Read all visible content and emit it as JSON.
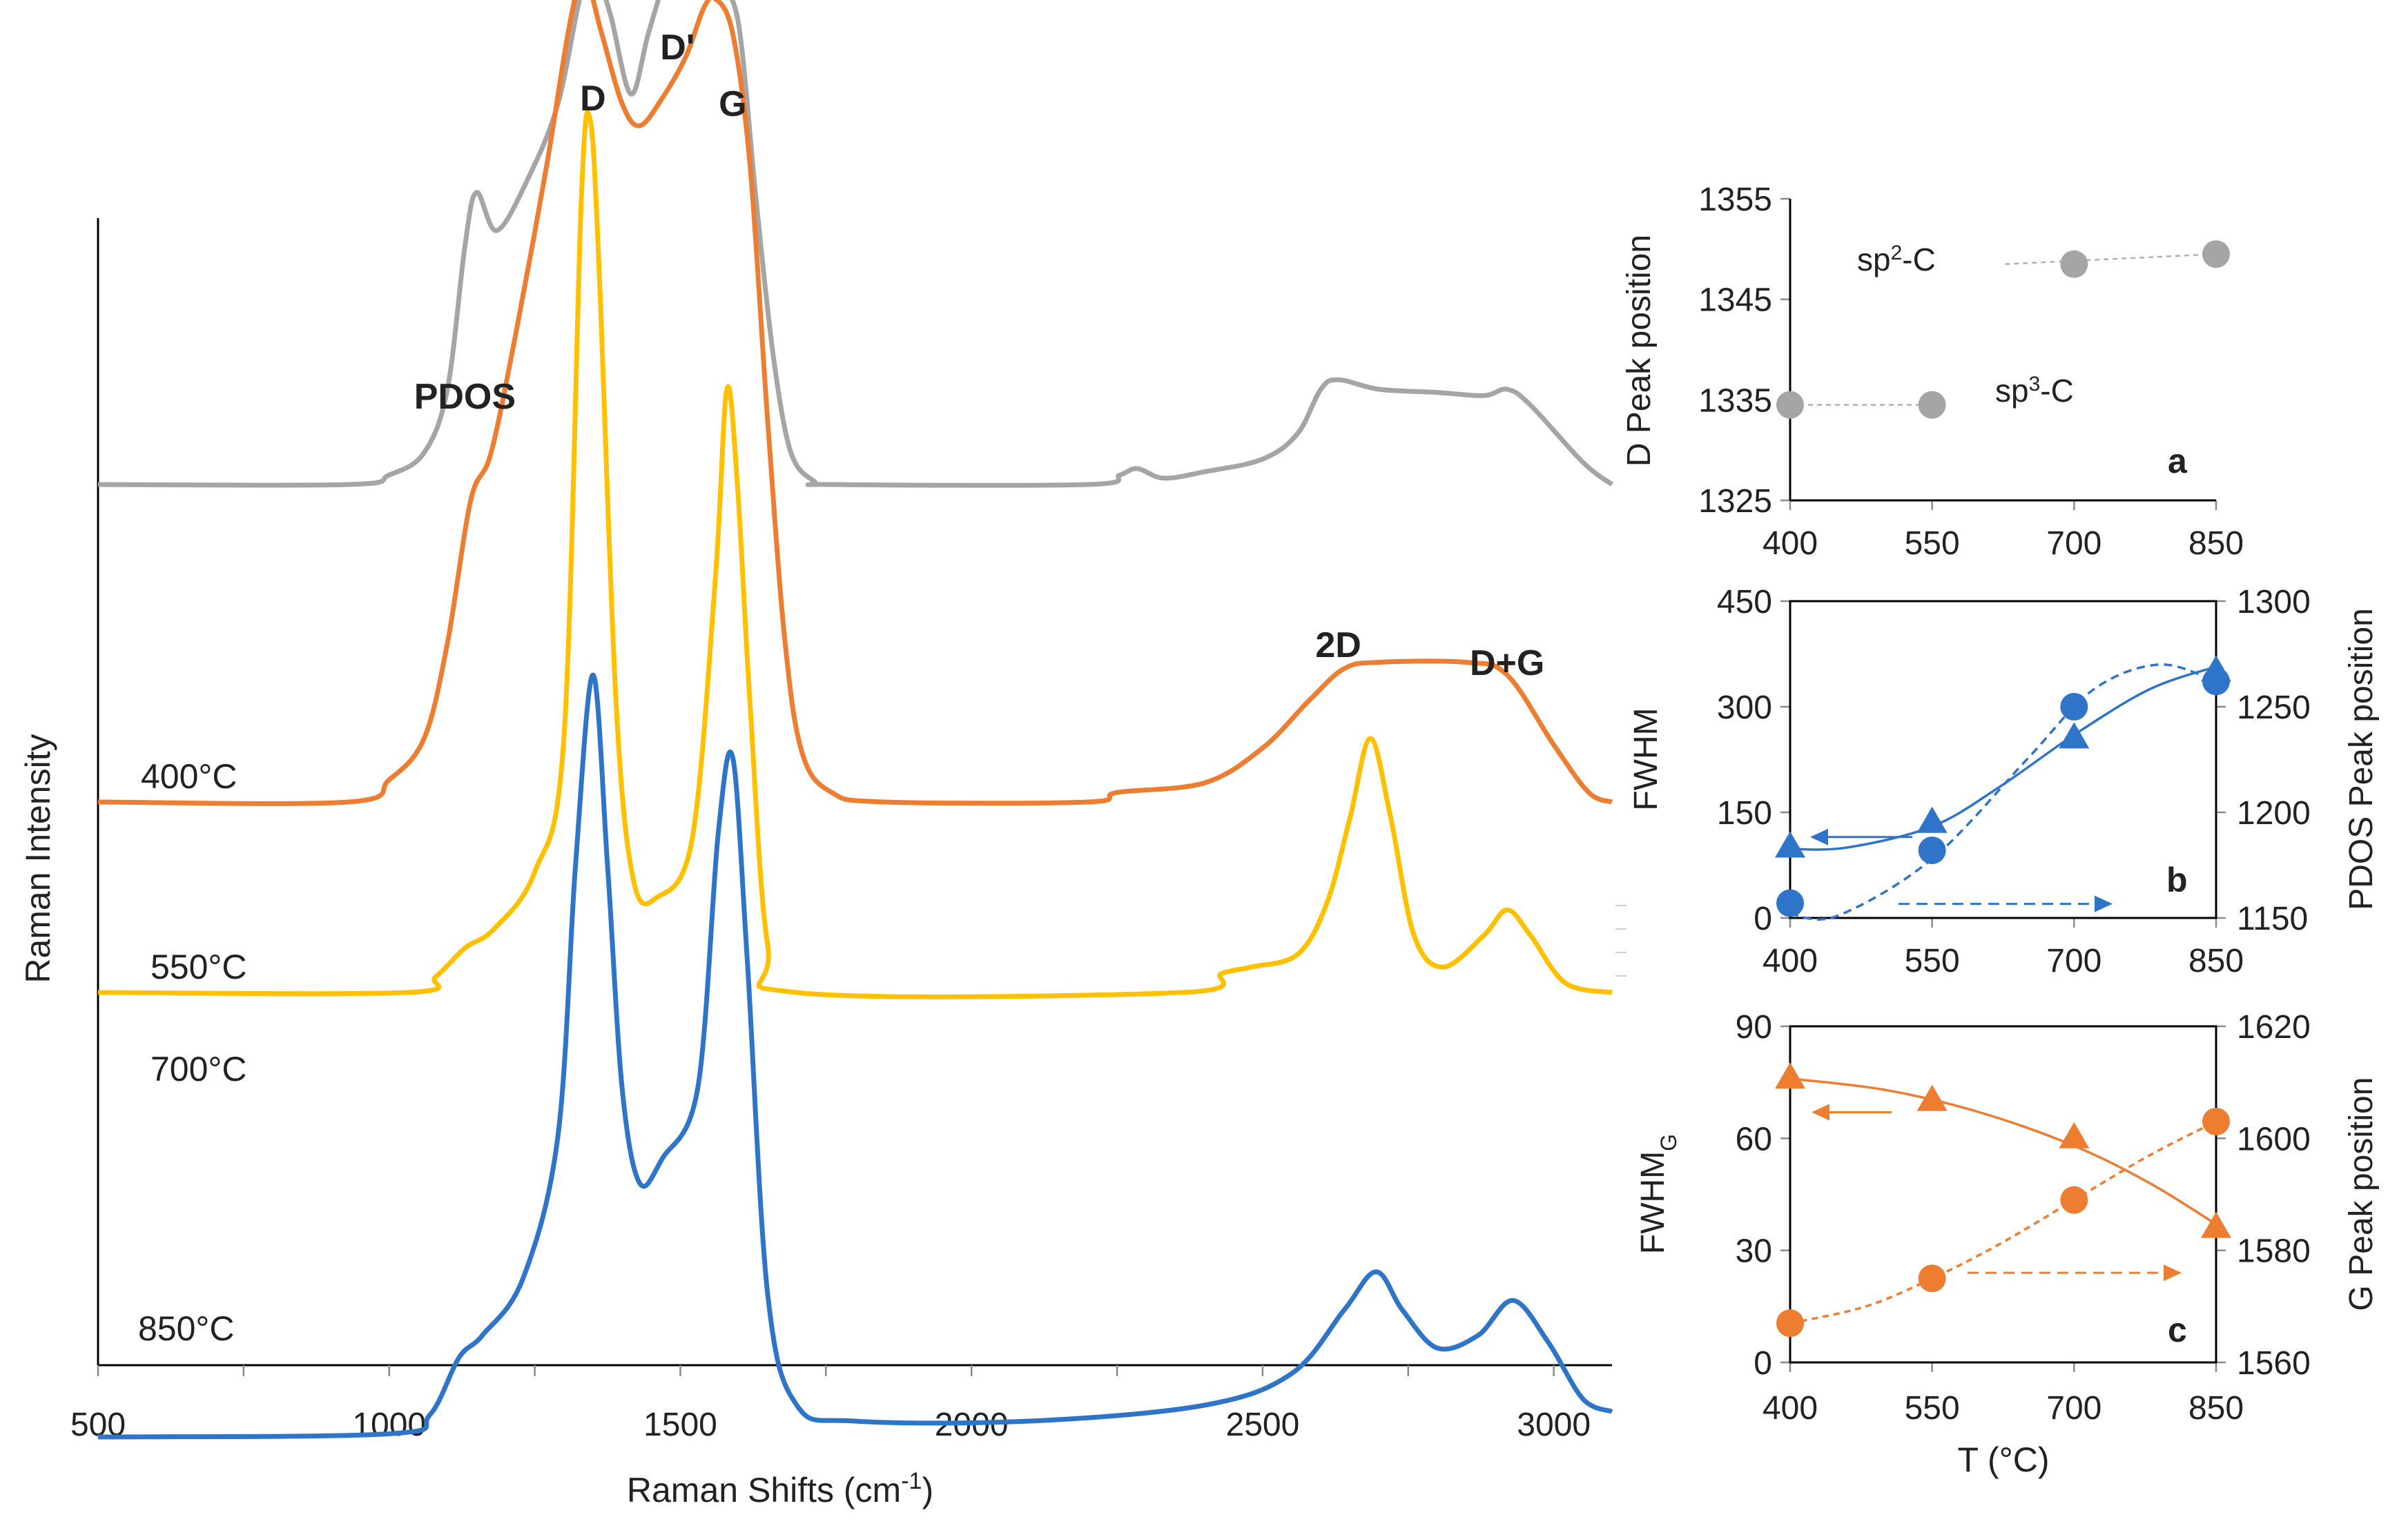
{
  "chart_data": [
    {
      "id": "raman",
      "type": "line",
      "xlabel": "Raman Shifts (cm-1)",
      "ylabel": "Raman Intensity",
      "xlim": [
        500,
        3100
      ],
      "xticks": [
        500,
        1000,
        1500,
        2000,
        2500,
        3000
      ],
      "peak_labels": [
        {
          "text": "PDOS",
          "x": 1130
        },
        {
          "text": "D",
          "x": 1350
        },
        {
          "text": "D'",
          "x": 1495
        },
        {
          "text": "G",
          "x": 1590
        },
        {
          "text": "2D",
          "x": 2630
        },
        {
          "text": "D+G",
          "x": 2920
        }
      ],
      "series": [
        {
          "name": "400°C",
          "color": "#A5A5A5",
          "baseline": 1.0,
          "points": [
            [
              500,
              1.0
            ],
            [
              930,
              1.0
            ],
            [
              1000,
              1.03
            ],
            [
              1060,
              1.1
            ],
            [
              1100,
              1.3
            ],
            [
              1130,
              1.75
            ],
            [
              1150,
              1.92
            ],
            [
              1185,
              1.8
            ],
            [
              1240,
              1.97
            ],
            [
              1290,
              2.2
            ],
            [
              1330,
              2.55
            ],
            [
              1355,
              2.6
            ],
            [
              1380,
              2.48
            ],
            [
              1415,
              2.23
            ],
            [
              1445,
              2.42
            ],
            [
              1480,
              2.63
            ],
            [
              1495,
              2.66
            ],
            [
              1525,
              2.58
            ],
            [
              1545,
              2.56
            ],
            [
              1570,
              2.56
            ],
            [
              1600,
              2.45
            ],
            [
              1630,
              1.9
            ],
            [
              1660,
              1.4
            ],
            [
              1690,
              1.1
            ],
            [
              1730,
              1.01
            ],
            [
              1760,
              1.0
            ],
            [
              2200,
              1.0
            ],
            [
              2255,
              1.03
            ],
            [
              2285,
              1.05
            ],
            [
              2330,
              1.02
            ],
            [
              2400,
              1.04
            ],
            [
              2500,
              1.08
            ],
            [
              2560,
              1.16
            ],
            [
              2600,
              1.3
            ],
            [
              2630,
              1.33
            ],
            [
              2700,
              1.3
            ],
            [
              2800,
              1.29
            ],
            [
              2880,
              1.28
            ],
            [
              2920,
              1.3
            ],
            [
              2960,
              1.25
            ],
            [
              3050,
              1.07
            ],
            [
              3100,
              1.0
            ]
          ]
        },
        {
          "name": "550°C",
          "color": "#ED7D31",
          "baseline": 0.0,
          "points": [
            [
              500,
              0.0
            ],
            [
              930,
              0.0
            ],
            [
              1000,
              0.07
            ],
            [
              1060,
              0.2
            ],
            [
              1100,
              0.5
            ],
            [
              1140,
              0.95
            ],
            [
              1175,
              1.1
            ],
            [
              1220,
              1.5
            ],
            [
              1270,
              2.0
            ],
            [
              1310,
              2.45
            ],
            [
              1335,
              2.6
            ],
            [
              1365,
              2.42
            ],
            [
              1400,
              2.2
            ],
            [
              1430,
              2.13
            ],
            [
              1470,
              2.22
            ],
            [
              1510,
              2.35
            ],
            [
              1540,
              2.5
            ],
            [
              1560,
              2.53
            ],
            [
              1590,
              2.42
            ],
            [
              1620,
              2.0
            ],
            [
              1650,
              1.2
            ],
            [
              1680,
              0.5
            ],
            [
              1710,
              0.15
            ],
            [
              1760,
              0.03
            ],
            [
              1850,
              0.0
            ],
            [
              2200,
              0.0
            ],
            [
              2250,
              0.03
            ],
            [
              2400,
              0.06
            ],
            [
              2500,
              0.17
            ],
            [
              2580,
              0.32
            ],
            [
              2640,
              0.42
            ],
            [
              2700,
              0.44
            ],
            [
              2850,
              0.44
            ],
            [
              2920,
              0.4
            ],
            [
              3000,
              0.18
            ],
            [
              3060,
              0.03
            ],
            [
              3100,
              0.0
            ]
          ]
        },
        {
          "name": "700°C",
          "color": "#FFC000",
          "baseline": -0.6,
          "points": [
            [
              500,
              -0.6
            ],
            [
              1030,
              -0.6
            ],
            [
              1080,
              -0.55
            ],
            [
              1130,
              -0.46
            ],
            [
              1180,
              -0.4
            ],
            [
              1250,
              -0.22
            ],
            [
              1300,
              0.2
            ],
            [
              1330,
              1.9
            ],
            [
              1345,
              2.15
            ],
            [
              1360,
              1.7
            ],
            [
              1390,
              0.3
            ],
            [
              1420,
              -0.25
            ],
            [
              1460,
              -0.3
            ],
            [
              1520,
              -0.12
            ],
            [
              1560,
              0.7
            ],
            [
              1580,
              1.3
            ],
            [
              1598,
              1.0
            ],
            [
              1620,
              0.3
            ],
            [
              1650,
              -0.45
            ],
            [
              1700,
              -0.6
            ],
            [
              2360,
              -0.6
            ],
            [
              2430,
              -0.54
            ],
            [
              2480,
              -0.52
            ],
            [
              2560,
              -0.48
            ],
            [
              2610,
              -0.32
            ],
            [
              2650,
              -0.05
            ],
            [
              2685,
              0.2
            ],
            [
              2720,
              -0.05
            ],
            [
              2760,
              -0.42
            ],
            [
              2810,
              -0.52
            ],
            [
              2880,
              -0.42
            ],
            [
              2920,
              -0.34
            ],
            [
              2960,
              -0.42
            ],
            [
              3020,
              -0.57
            ],
            [
              3100,
              -0.6
            ]
          ]
        },
        {
          "name": "850°C",
          "color": "#2E75C9",
          "baseline": -2.0,
          "points": [
            [
              500,
              -2.0
            ],
            [
              1000,
              -1.99
            ],
            [
              1070,
              -1.93
            ],
            [
              1120,
              -1.75
            ],
            [
              1160,
              -1.68
            ],
            [
              1230,
              -1.5
            ],
            [
              1290,
              -1.05
            ],
            [
              1320,
              -0.2
            ],
            [
              1350,
              0.4
            ],
            [
              1375,
              -0.2
            ],
            [
              1400,
              -0.9
            ],
            [
              1430,
              -1.2
            ],
            [
              1470,
              -1.12
            ],
            [
              1530,
              -0.9
            ],
            [
              1565,
              -0.1
            ],
            [
              1590,
              0.14
            ],
            [
              1615,
              -0.5
            ],
            [
              1650,
              -1.55
            ],
            [
              1700,
              -1.9
            ],
            [
              1800,
              -1.95
            ],
            [
              2100,
              -1.95
            ],
            [
              2400,
              -1.9
            ],
            [
              2550,
              -1.8
            ],
            [
              2640,
              -1.6
            ],
            [
              2695,
              -1.48
            ],
            [
              2740,
              -1.6
            ],
            [
              2800,
              -1.72
            ],
            [
              2870,
              -1.68
            ],
            [
              2930,
              -1.57
            ],
            [
              2990,
              -1.7
            ],
            [
              3050,
              -1.88
            ],
            [
              3100,
              -1.92
            ]
          ]
        }
      ]
    },
    {
      "id": "a",
      "type": "scatter",
      "panel_letter": "a",
      "ylabel": "D Peak position",
      "xlim": [
        400,
        850
      ],
      "ylim": [
        1325,
        1355
      ],
      "xticks": [
        400,
        550,
        700,
        850
      ],
      "yticks": [
        1325,
        1335,
        1345,
        1355
      ],
      "annotations": [
        "sp2-C",
        "sp3-C"
      ],
      "series": [
        {
          "name": "D peak",
          "color": "#A5A5A5",
          "x": [
            400,
            550,
            700,
            850
          ],
          "y": [
            1334.5,
            1334.5,
            1348.5,
            1349.5
          ]
        }
      ]
    },
    {
      "id": "b",
      "type": "scatter",
      "panel_letter": "b",
      "ylabel": "FWHM",
      "y2label": "PDOS Peak position",
      "xlim": [
        400,
        850
      ],
      "ylim": [
        0,
        450
      ],
      "y2lim": [
        1150,
        1300
      ],
      "xticks": [
        400,
        550,
        700,
        850
      ],
      "yticks": [
        0,
        150,
        300,
        450
      ],
      "y2ticks": [
        1150,
        1200,
        1250,
        1300
      ],
      "series": [
        {
          "name": "FWHM",
          "marker": "triangle",
          "color": "#2E75C9",
          "axis": "left",
          "x": [
            400,
            550,
            700,
            850
          ],
          "y": [
            100,
            135,
            255,
            350
          ]
        },
        {
          "name": "PDOS Peak position",
          "marker": "circle",
          "color": "#2E75C9",
          "axis": "right",
          "x": [
            400,
            550,
            700,
            850
          ],
          "y": [
            1157,
            1182,
            1250,
            1262
          ]
        }
      ]
    },
    {
      "id": "c",
      "type": "scatter",
      "panel_letter": "c",
      "xlabel": "T (°C)",
      "ylabel": "FWHMG",
      "y2label": "G Peak position",
      "xlim": [
        400,
        850
      ],
      "ylim": [
        0,
        90
      ],
      "y2lim": [
        1560,
        1620
      ],
      "xticks": [
        400,
        550,
        700,
        850
      ],
      "yticks": [
        0,
        30,
        60,
        90
      ],
      "y2ticks": [
        1560,
        1580,
        1600,
        1620
      ],
      "series": [
        {
          "name": "FWHMG",
          "marker": "triangle",
          "color": "#ED7D31",
          "axis": "left",
          "x": [
            400,
            550,
            700,
            850
          ],
          "y": [
            76,
            70,
            60,
            36
          ]
        },
        {
          "name": "G Peak position",
          "marker": "circle",
          "color": "#ED7D31",
          "axis": "right",
          "x": [
            400,
            550,
            700,
            850
          ],
          "y": [
            1567,
            1575,
            1589,
            1603
          ]
        }
      ]
    }
  ]
}
